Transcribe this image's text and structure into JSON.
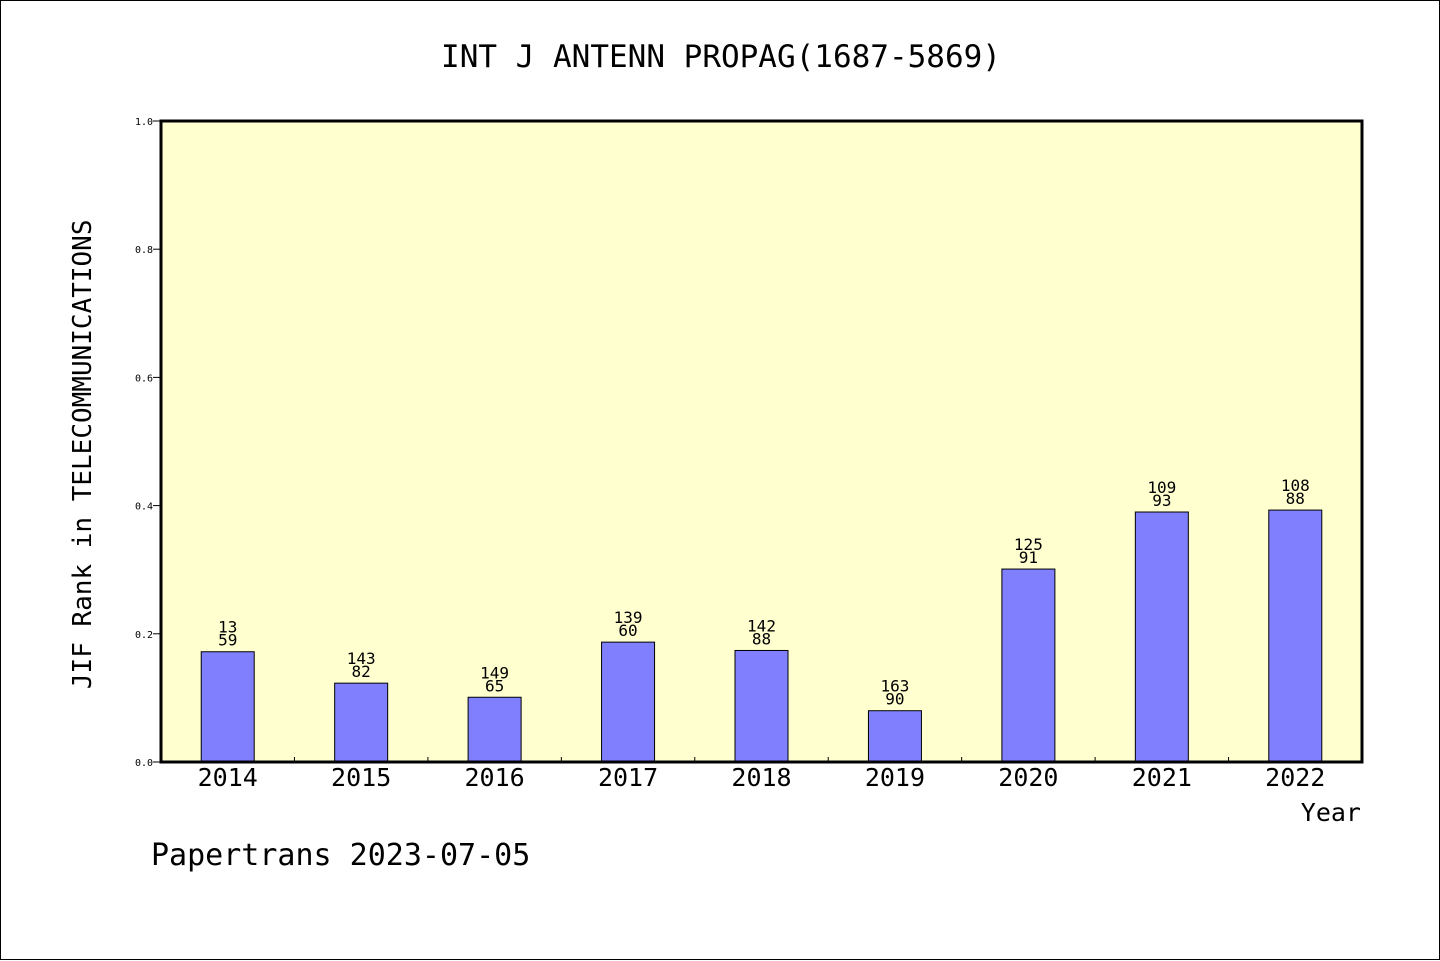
{
  "chart_data": {
    "type": "bar",
    "title": "INT J ANTENN PROPAG(1687-5869)",
    "ylabel": "JIF Rank in TELECOMMUNICATIONS",
    "xlabel": "Year",
    "ylim": [
      0,
      1.0
    ],
    "yticks": [
      "0.0",
      "0.2",
      "0.4",
      "0.6",
      "0.8",
      "1.0"
    ],
    "categories": [
      "2014",
      "2015",
      "2016",
      "2017",
      "2018",
      "2019",
      "2020",
      "2021",
      "2022"
    ],
    "values": [
      0.172,
      0.123,
      0.101,
      0.187,
      0.174,
      0.08,
      0.301,
      0.39,
      0.393
    ],
    "labels_top": [
      "13",
      "143",
      "149",
      "139",
      "142",
      "163",
      "125",
      "109",
      "108"
    ],
    "labels_bottom": [
      "59",
      "82",
      "65",
      "60",
      "88",
      "90",
      "91",
      "93",
      "88"
    ],
    "grid": false,
    "colors": {
      "plot_bg": "#ffffd0",
      "bar": "#8080ff",
      "axis": "#000000"
    }
  },
  "footer": "Papertrans 2023-07-05"
}
